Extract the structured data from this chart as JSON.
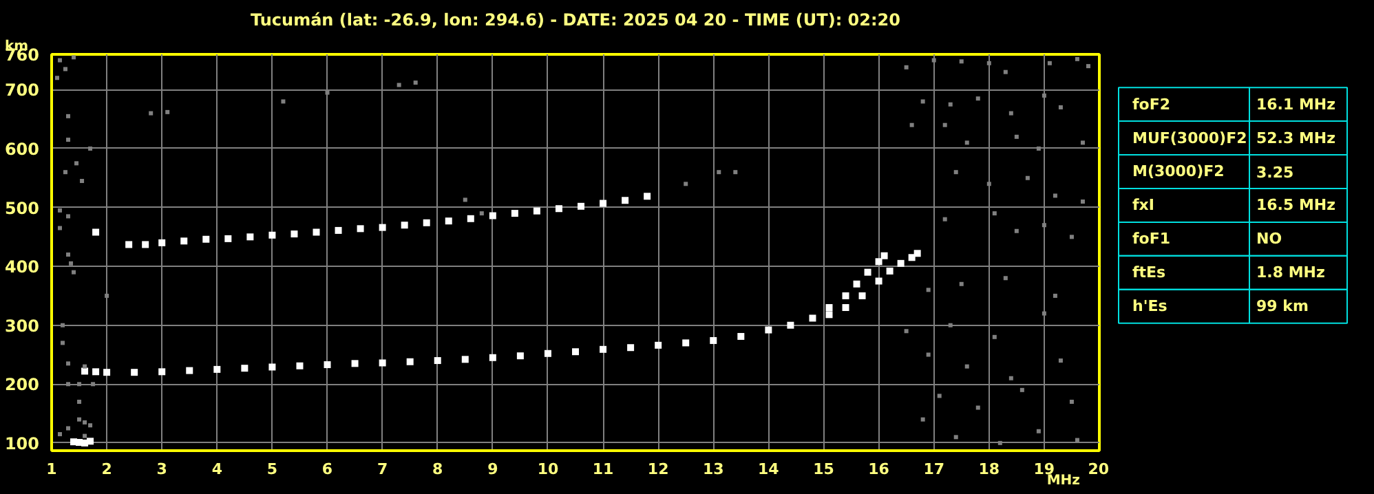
{
  "chart_data": [
    {
      "type": "scatter",
      "title": "Tucumán (lat: -26.9, lon: 294.6) - DATE: 2025 04 20 - TIME (UT): 02:20",
      "xlabel": "MHz",
      "ylabel": "km",
      "xlim": [
        1,
        20
      ],
      "ylim": [
        87,
        760
      ],
      "xticks": [
        1,
        2,
        3,
        4,
        5,
        6,
        7,
        8,
        9,
        10,
        11,
        12,
        13,
        14,
        15,
        16,
        17,
        18,
        19,
        20
      ],
      "yticks": [
        100,
        200,
        300,
        400,
        500,
        600,
        700,
        760
      ],
      "grid": true,
      "marker": "square",
      "series": [
        {
          "color": "#ffffff",
          "x": [
            1.6,
            1.8,
            2,
            2.5,
            3,
            3.5,
            4,
            4.5,
            5,
            5.5,
            6,
            6.5,
            7,
            7.5,
            8,
            8.5,
            9,
            9.5,
            10,
            10.5,
            11,
            11.5,
            12,
            12.5,
            13,
            13.5,
            14,
            14.4,
            14.8,
            15.1,
            15.4,
            15.6,
            15.8,
            16.0,
            16.1
          ],
          "values": [
            222,
            221,
            220,
            220,
            221,
            223,
            225,
            227,
            229,
            231,
            233,
            235,
            236,
            238,
            240,
            242,
            245,
            248,
            252,
            255,
            259,
            262,
            266,
            270,
            274,
            281,
            292,
            300,
            312,
            330,
            350,
            370,
            390,
            408,
            418
          ]
        },
        {
          "color": "#ffffff",
          "x": [
            15.1,
            15.4,
            15.7,
            16.0,
            16.2,
            16.4,
            16.6,
            16.7
          ],
          "values": [
            318,
            330,
            350,
            375,
            392,
            405,
            415,
            422
          ]
        },
        {
          "color": "#ffffff",
          "x": [
            1.8,
            2.4,
            2.7,
            3.0,
            3.4,
            3.8,
            4.2,
            4.6,
            5.0,
            5.4,
            5.8,
            6.2,
            6.6,
            7.0,
            7.4,
            7.8,
            8.2,
            8.6,
            9.0,
            9.4,
            9.8,
            10.2,
            10.6,
            11.0,
            11.4,
            11.8
          ],
          "values": [
            458,
            437,
            437,
            440,
            443,
            446,
            447,
            450,
            453,
            455,
            458,
            461,
            464,
            466,
            470,
            474,
            477,
            481,
            486,
            490,
            494,
            498,
            502,
            507,
            512,
            519
          ]
        },
        {
          "color": "#ffffff",
          "x": [
            1.4,
            1.5,
            1.6,
            1.7
          ],
          "values": [
            102,
            101,
            100,
            103
          ]
        },
        {
          "color": "#808080",
          "x": [
            1.1,
            1.15,
            1.25,
            1.4,
            1.3,
            1.3,
            1.25,
            1.45,
            1.55,
            1.7,
            1.15,
            1.3,
            1.15,
            1.3,
            1.35,
            1.4,
            1.2,
            1.2,
            1.3,
            1.5,
            1.5,
            1.6,
            1.3,
            1.15,
            1.6,
            1.7,
            2.0,
            1.3,
            1.5,
            1.75,
            1.6,
            2.8,
            3.1,
            5.2,
            6.0,
            7.3,
            7.6,
            8.5,
            8.8,
            12.5,
            13.1,
            13.4,
            16.5,
            17.0,
            17.5,
            18.0,
            18.3,
            19.1,
            19.6,
            19.8,
            16.8,
            17.3,
            17.8,
            18.4,
            19.0,
            19.3,
            16.6,
            17.2,
            17.6,
            18.5,
            18.9,
            19.7,
            17.4,
            18.0,
            18.7,
            19.2,
            19.7,
            17.2,
            18.1,
            18.5,
            19.0,
            19.5,
            16.9,
            17.5,
            18.3,
            19.2,
            16.5,
            17.3,
            18.1,
            19.0,
            16.9,
            17.6,
            18.4,
            19.3,
            17.1,
            17.8,
            18.6,
            19.5,
            16.8,
            17.4,
            18.2,
            18.9,
            19.6
          ],
          "values": [
            720,
            750,
            735,
            755,
            655,
            615,
            560,
            575,
            545,
            600,
            495,
            485,
            465,
            420,
            405,
            390,
            300,
            270,
            235,
            170,
            140,
            135,
            125,
            115,
            112,
            130,
            350,
            200,
            200,
            200,
            230,
            660,
            662,
            680,
            695,
            708,
            712,
            513,
            490,
            540,
            560,
            560,
            738,
            750,
            748,
            745,
            730,
            745,
            752,
            740,
            680,
            675,
            685,
            660,
            690,
            670,
            640,
            640,
            610,
            620,
            600,
            610,
            560,
            540,
            550,
            520,
            510,
            480,
            490,
            460,
            470,
            450,
            360,
            370,
            380,
            350,
            290,
            300,
            280,
            320,
            250,
            230,
            210,
            240,
            180,
            160,
            190,
            170,
            140,
            110,
            100,
            120,
            105
          ]
        }
      ]
    },
    {
      "type": "other",
      "categories": [
        "foF2",
        "MUF(3000)F2",
        "M(3000)F2",
        "fxI",
        "foF1",
        "ftEs",
        "h'Es"
      ],
      "value_labels": [
        "16.1 MHz",
        "52.3 MHz",
        "3.25",
        "16.5 MHz",
        "NO",
        "1.8 MHz",
        "99 km"
      ]
    }
  ]
}
